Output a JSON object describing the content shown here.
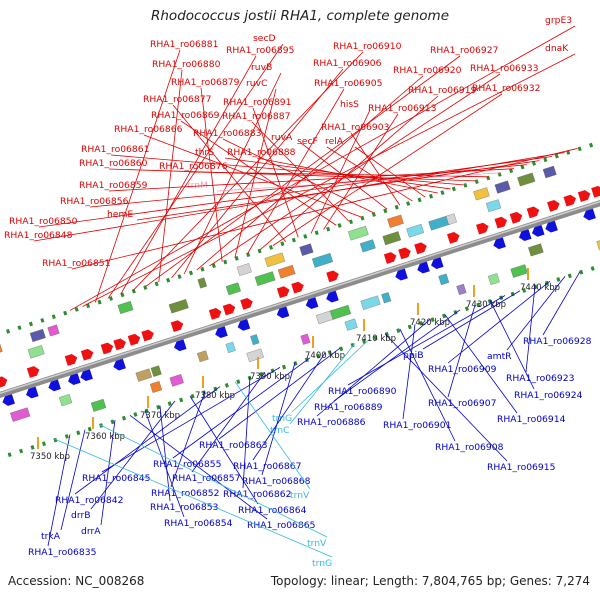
{
  "title": "Rhodococcus jostii RHA1, complete genome",
  "footer": {
    "accession": "Accession: NC_008268",
    "summary": "Topology: linear; Length: 7,804,765 bp; Genes: 7,274"
  },
  "colors": {
    "forward_label": "#e00000",
    "reverse_label": "#0000cc",
    "rna_label": "#33bbdd",
    "pseudo_label": "#ff9ab8",
    "backbone": "#8c8c8c",
    "dots": "#2e8b2e"
  },
  "scale_labels": [
    "7350 kbp",
    "7360 kbp",
    "7370 kbp",
    "7380 kbp",
    "7390 kbp",
    "7400 kbp",
    "7410 kbp",
    "7420 kbp",
    "7430 kbp",
    "7440 kbp"
  ],
  "top_labels": [
    "grpE3",
    "dnaK",
    "RHA1_ro06881",
    "secD",
    "RHA1_ro06895",
    "RHA1_ro06910",
    "RHA1_ro06927",
    "RHA1_ro06880",
    "RHA1_ro06906",
    "ruvB",
    "RHA1_ro06920",
    "RHA1_ro06933",
    "RHA1_ro06879",
    "ruvC",
    "RHA1_ro06905",
    "RHA1_ro06919",
    "RHA1_ro06932",
    "RHA1_ro06877",
    "RHA1_ro06891",
    "hisS",
    "RHA1_ro06913",
    "RHA1_ro06869",
    "RHA1_ro06887",
    "RHA1_ro06866",
    "RHA1_ro06883",
    "ruvA",
    "RHA1_ro06903",
    "secF",
    "relA",
    "RHA1_ro06888",
    "thrS",
    "RHA1_ro06861",
    "RHA1_ro06860",
    "RHA1_ro06876",
    "trnM",
    "RHA1_ro06859",
    "RHA1_ro06856",
    "hemE",
    "RHA1_ro06850",
    "RHA1_ro06848",
    "RHA1_ro06851"
  ],
  "bottom_labels": [
    "RHA1_ro06928",
    "amtR",
    "RHA1_ro06909",
    "RHA1_ro06923",
    "ppiB",
    "RHA1_ro06890",
    "RHA1_ro06924",
    "RHA1_ro06907",
    "RHA1_ro06889",
    "RHA1_ro06914",
    "RHA1_ro06886",
    "RHA1_ro06901",
    "RHA1_ro06908",
    "RHA1_ro06915",
    "trnG",
    "trnC",
    "RHA1_ro06863",
    "RHA1_ro06867",
    "RHA1_ro06855",
    "RHA1_ro06868",
    "RHA1_ro06845",
    "RHA1_ro06857",
    "RHA1_ro06862",
    "trnV",
    "RHA1_ro06842",
    "RHA1_ro06852",
    "RHA1_ro06864",
    "drrB",
    "RHA1_ro06853",
    "RHA1_ro06854",
    "RHA1_ro06865",
    "drrA",
    "trnV",
    "trkA",
    "RHA1_ro06835",
    "trnG"
  ]
}
